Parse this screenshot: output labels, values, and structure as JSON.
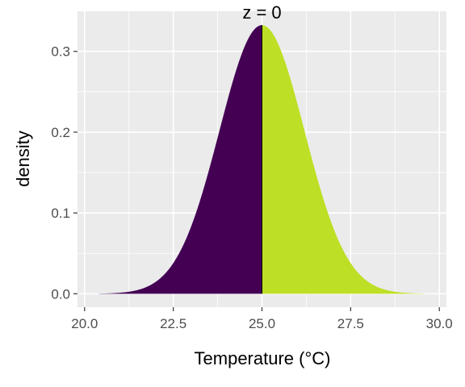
{
  "chart_data": {
    "type": "area",
    "title": "",
    "xlabel": "Temperature (°C)",
    "ylabel": "density",
    "xlim": [
      19.8,
      30.2
    ],
    "ylim": [
      -0.0166,
      0.3496
    ],
    "x_ticks": [
      20.0,
      22.5,
      25.0,
      27.5,
      30.0
    ],
    "x_tick_labels": [
      "20.0",
      "22.5",
      "25.0",
      "27.5",
      "30.0"
    ],
    "y_ticks": [
      0.0,
      0.1,
      0.2,
      0.3
    ],
    "y_tick_labels": [
      "0.0",
      "0.1",
      "0.2",
      "0.3"
    ],
    "grid": true,
    "background": "#ebebeb",
    "grid_color": "#ffffff",
    "distribution": {
      "kind": "normal",
      "mean": 25.0,
      "sd": 1.2,
      "x_min": 20.4,
      "x_max": 29.6
    },
    "series": [
      {
        "fill": "#440154",
        "from": 20.4,
        "to": 25.0
      },
      {
        "fill": "#bddf26",
        "from": 25.0,
        "to": 29.6
      }
    ],
    "annotation": {
      "text": "z =  0",
      "x": 25.0
    }
  }
}
